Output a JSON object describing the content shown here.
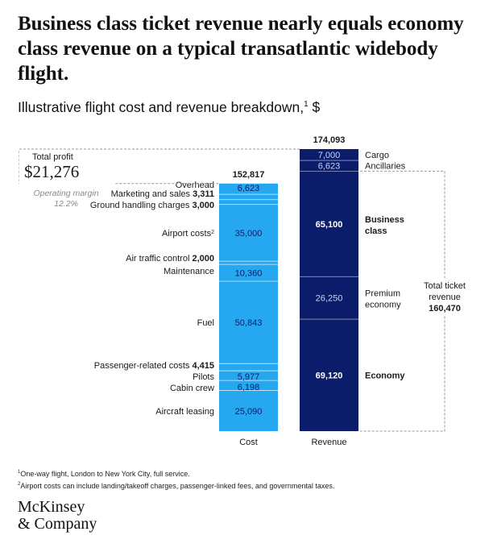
{
  "headline": "Business class ticket revenue nearly equals economy class revenue on a typical transatlantic widebody flight.",
  "subtitle": "Illustrative flight cost and revenue breakdown,",
  "subtitle_footnote": "1",
  "subtitle_unit": " $",
  "colors": {
    "cost": "#25a8ef",
    "revenue": "#0b1c6b",
    "dashed": "#9a9a9a"
  },
  "chart_data": {
    "type": "bar",
    "stacked": true,
    "categories": [
      "Cost",
      "Revenue"
    ],
    "cost": {
      "total": 152817,
      "total_label": "152,817",
      "segments": [
        {
          "name": "Aircraft leasing",
          "value": 25090,
          "value_label": "25,090"
        },
        {
          "name": "Cabin crew",
          "value": 6198,
          "value_label": "6,198"
        },
        {
          "name": "Pilots",
          "value": 5977,
          "value_label": "5,977"
        },
        {
          "name": "Passenger-related costs",
          "value": 4415,
          "value_label": "4,415"
        },
        {
          "name": "Fuel",
          "value": 50843,
          "value_label": "50,843"
        },
        {
          "name": "Maintenance",
          "value": 10360,
          "value_label": "10,360"
        },
        {
          "name": "Air traffic control",
          "value": 2000,
          "value_label": "2,000"
        },
        {
          "name": "Airport costs",
          "name_sup": "2",
          "value": 35000,
          "value_label": "35,000"
        },
        {
          "name": "Ground handling charges",
          "value": 3000,
          "value_label": "3,000"
        },
        {
          "name": "Marketing and sales",
          "value": 3311,
          "value_label": "3,311"
        },
        {
          "name": "Overhead",
          "value": 6623,
          "value_label": "6,623"
        }
      ]
    },
    "revenue": {
      "total": 174093,
      "total_label": "174,093",
      "segments": [
        {
          "name": "Economy",
          "value": 69120,
          "value_label": "69,120"
        },
        {
          "name": "Premium economy",
          "value": 26250,
          "value_label": "26,250"
        },
        {
          "name": "Business class",
          "value": 65100,
          "value_label": "65,100"
        },
        {
          "name": "Ancillaries",
          "value": 6623,
          "value_label": "6,623"
        },
        {
          "name": "Cargo",
          "value": 7000,
          "value_label": "7,000"
        }
      ]
    },
    "profit": {
      "label": "Total profit",
      "value": 21276,
      "value_label": "$21,276",
      "margin_label": "Operating margin",
      "margin_value": "12.2%"
    },
    "ticket_revenue": {
      "label_line1": "Total ticket",
      "label_line2": "revenue",
      "value": 160470,
      "value_label": "160,470"
    },
    "xlabels": [
      "Cost",
      "Revenue"
    ]
  },
  "footnotes": [
    {
      "sup": "1",
      "text": "One-way flight, London to New York City, full service."
    },
    {
      "sup": "2",
      "text": "Airport costs can include landing/takeoff charges, passenger-linked fees, and governmental taxes."
    }
  ],
  "logo": {
    "line1": "McKinsey",
    "line2": "& Company"
  }
}
